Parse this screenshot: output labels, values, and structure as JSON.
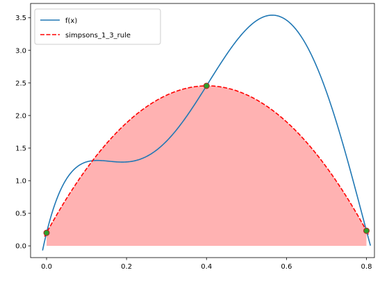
{
  "chart_data": {
    "type": "line",
    "title": "",
    "xlabel": "",
    "ylabel": "",
    "xlim": [
      -0.04,
      0.82
    ],
    "ylim": [
      -0.18,
      3.72
    ],
    "x_ticks": [
      0.0,
      0.2,
      0.4,
      0.6,
      0.8
    ],
    "x_tick_labels": [
      "0.0",
      "0.2",
      "0.4",
      "0.6",
      "0.8"
    ],
    "y_ticks": [
      0.0,
      0.5,
      1.0,
      1.5,
      2.0,
      2.5,
      3.0,
      3.5
    ],
    "y_tick_labels": [
      "0.0",
      "0.5",
      "1.0",
      "1.5",
      "2.0",
      "2.5",
      "3.0",
      "3.5"
    ],
    "grid": false,
    "legend_position": "top-left",
    "series": [
      {
        "name": "f(x)",
        "style": "solid",
        "color": "#1f77b4",
        "fx_coefficients": [
          0.2,
          25,
          -200,
          675,
          -900,
          400
        ],
        "domain": [
          -0.01,
          0.81
        ]
      },
      {
        "name": "simpsons_1_3_rule",
        "style": "dashed",
        "color": "#ff0000",
        "x": [
          0.0,
          0.4,
          0.8
        ],
        "y": [
          0.2,
          2.456,
          0.232
        ],
        "domain": [
          -0.005,
          0.805
        ],
        "fill_color": "#ff0000",
        "fill_opacity": 0.3
      }
    ],
    "points": {
      "x": [
        0.0,
        0.4,
        0.8
      ],
      "y": [
        0.2,
        2.456,
        0.232
      ],
      "fill_color": "#2ca02c",
      "edge_color": "#b22222"
    }
  }
}
